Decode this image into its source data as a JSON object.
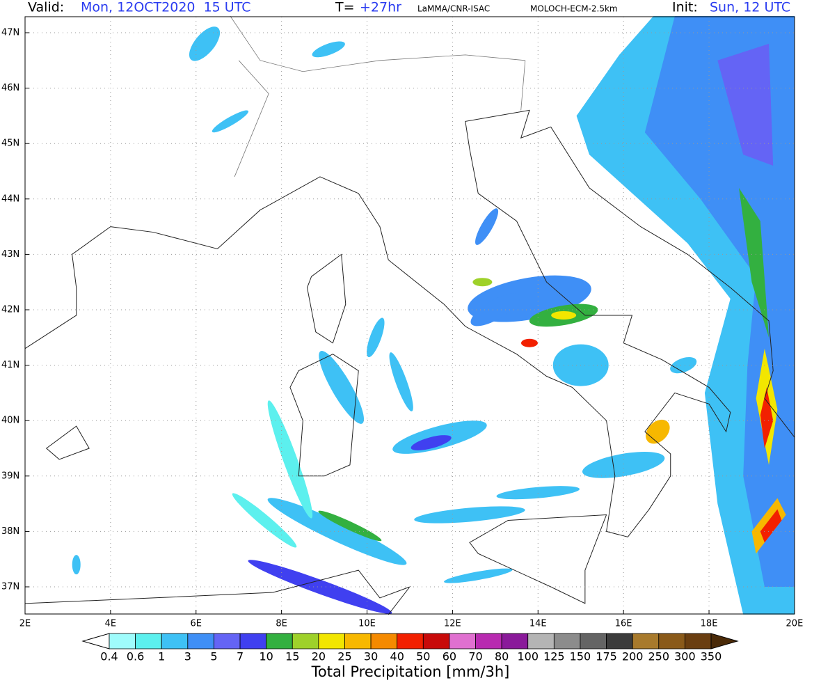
{
  "header": {
    "valid_label": "Valid:",
    "valid_value": "Mon, 12OCT2020  15 UTC",
    "step_label": "T=",
    "step_value": "+27hr",
    "source": "LaMMA/CNR-ISAC",
    "model": "MOLOCH-ECM-2.5km",
    "init_label": "Init:",
    "init_value": "Sun, 12 UTC"
  },
  "map": {
    "lat_labels": [
      "47N",
      "46N",
      "45N",
      "44N",
      "43N",
      "42N",
      "41N",
      "40N",
      "39N",
      "38N",
      "37N"
    ],
    "lon_labels": [
      "2E",
      "4E",
      "6E",
      "8E",
      "10E",
      "12E",
      "14E",
      "16E",
      "18E",
      "20E"
    ]
  },
  "colorbar": {
    "title": "Total Precipitation [mm/3h]",
    "labels": [
      "0.4",
      "0.6",
      "1",
      "3",
      "5",
      "7",
      "10",
      "15",
      "20",
      "25",
      "30",
      "40",
      "50",
      "60",
      "70",
      "80",
      "100",
      "125",
      "150",
      "175",
      "200",
      "250",
      "300",
      "350"
    ],
    "colors": [
      "#ffffff",
      "#9ffcfc",
      "#5cf0ee",
      "#3ec1f5",
      "#3f8ff6",
      "#6464f5",
      "#4040f0",
      "#33b040",
      "#9ed12a",
      "#f2e600",
      "#f7b800",
      "#f58a00",
      "#f22000",
      "#c80a0a",
      "#e070d0",
      "#b82ab0",
      "#8a1a9a",
      "#b4b4b4",
      "#8c8c8c",
      "#646464",
      "#3c3c3c",
      "#a87a2c",
      "#8a5a1a",
      "#6a3e10",
      "#4a2a08"
    ]
  }
}
